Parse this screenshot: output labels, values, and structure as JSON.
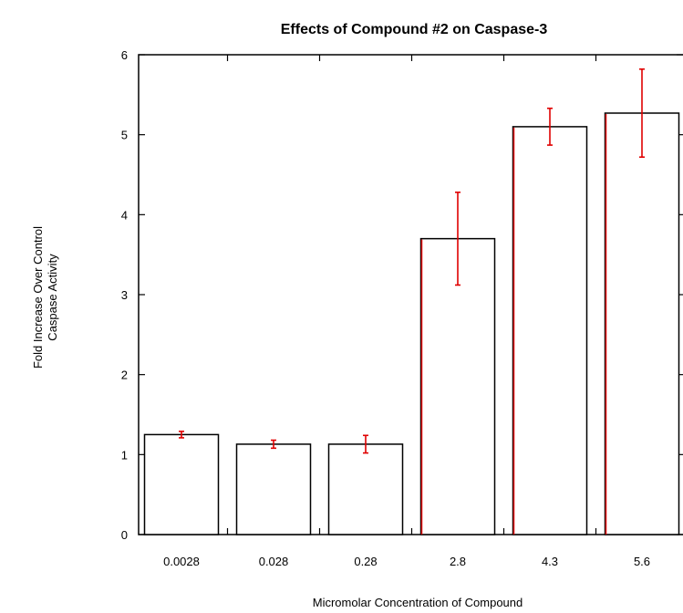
{
  "chart_data": {
    "type": "bar",
    "title": "Effects of Compound #2 on Caspase-3",
    "xlabel": "Micromolar Concentration of Compound",
    "ylabel_lines": [
      "Fold Increase Over Control",
      "Caspase Activity"
    ],
    "categories": [
      "0.0028",
      "0.028",
      "0.28",
      "2.8",
      "4.3",
      "5.6"
    ],
    "values": [
      1.25,
      1.13,
      1.13,
      3.7,
      5.1,
      5.27
    ],
    "errors": [
      0.04,
      0.05,
      0.11,
      0.58,
      0.23,
      0.55
    ],
    "ylim": [
      0,
      6
    ],
    "yticks": [
      "0",
      "1",
      "2",
      "3",
      "4",
      "5",
      "6"
    ],
    "grid": false,
    "colors": {
      "bar_fill": "#ffffff",
      "bar_edge": "#000000",
      "error_bar": "#e00000"
    }
  }
}
